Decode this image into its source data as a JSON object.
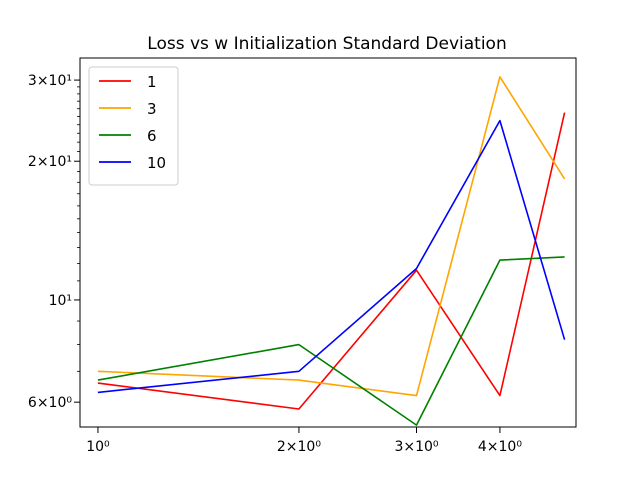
{
  "chart_data": {
    "type": "line",
    "title": "Loss vs w Initialization Standard Deviation",
    "xlabel": "",
    "ylabel": "",
    "xscale": "log",
    "yscale": "log",
    "xlim": [
      0.94,
      5.2
    ],
    "ylim": [
      5.3,
      33.5
    ],
    "x": [
      1,
      2,
      3,
      4,
      5
    ],
    "xticks": [
      {
        "value": 1,
        "label": "10⁰"
      },
      {
        "value": 2,
        "label": "2×10⁰"
      },
      {
        "value": 3,
        "label": "3×10⁰"
      },
      {
        "value": 4,
        "label": "4×10⁰"
      }
    ],
    "yticks": [
      {
        "value": 6,
        "label": "6×10⁰"
      },
      {
        "value": 10,
        "label": "10¹"
      },
      {
        "value": 20,
        "label": "2×10¹"
      },
      {
        "value": 30,
        "label": "3×10¹"
      }
    ],
    "legend_position": "upper-left",
    "grid": false,
    "series": [
      {
        "name": "1",
        "color": "#ff0000",
        "values": [
          6.6,
          5.8,
          11.6,
          6.2,
          25.5
        ]
      },
      {
        "name": "3",
        "color": "#ffa500",
        "values": [
          7.0,
          6.7,
          6.2,
          30.5,
          18.3
        ]
      },
      {
        "name": "6",
        "color": "#008000",
        "values": [
          6.7,
          8.0,
          5.35,
          12.2,
          12.4
        ]
      },
      {
        "name": "10",
        "color": "#0000ff",
        "values": [
          6.3,
          7.0,
          11.7,
          24.5,
          8.2
        ]
      }
    ]
  }
}
